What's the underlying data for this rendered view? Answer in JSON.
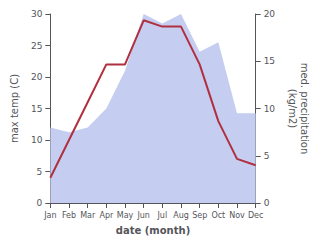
{
  "chart_data": {
    "type": "line",
    "categories": [
      "Jan",
      "Feb",
      "Mar",
      "Apr",
      "May",
      "Jun",
      "Jul",
      "Aug",
      "Sep",
      "Oct",
      "Nov",
      "Dec"
    ],
    "series": [
      {
        "type": "area",
        "axis": "y2",
        "color": "#c5cdf0",
        "values": [
          8,
          7.5,
          8,
          10,
          14,
          20,
          19,
          20,
          16,
          17,
          9.5,
          9.5
        ]
      },
      {
        "type": "line",
        "color": "#b03040",
        "values": [
          4,
          10,
          16,
          22,
          22,
          29,
          28,
          28,
          22,
          13,
          7,
          6
        ]
      }
    ],
    "xlabel": "date (month)",
    "ylabel": "max temp (C)",
    "y2label": "med. precipitation\n(kg/m2)",
    "ylim": [
      0,
      30
    ],
    "yticks": [
      0,
      5,
      10,
      15,
      20,
      25,
      30
    ],
    "y2lim": [
      0,
      20
    ],
    "y2ticks": [
      0,
      5,
      10,
      15,
      20
    ],
    "grid": false
  }
}
